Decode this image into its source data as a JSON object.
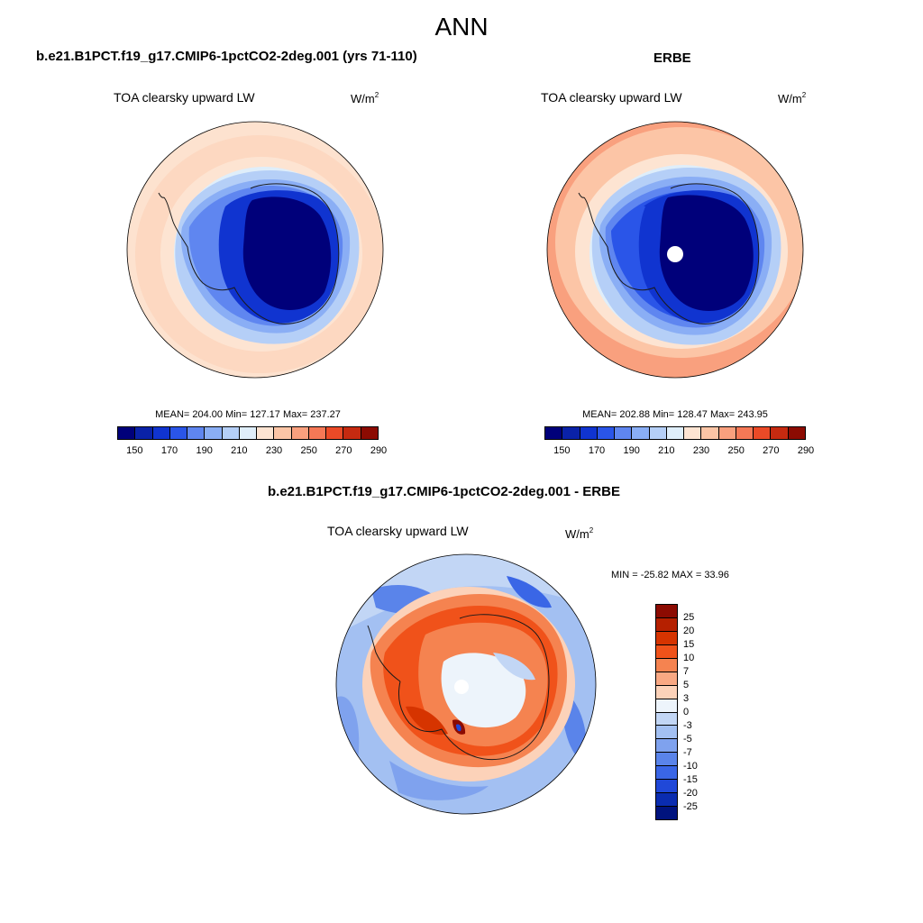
{
  "main_title": "ANN",
  "panels": [
    {
      "title": "b.e21.B1PCT.f19_g17.CMIP6-1pctCO2-2deg.001 (yrs 71-110)",
      "variable": "TOA clearsky upward LW",
      "unit_base": "W/m",
      "unit_exp": "2",
      "stats": "MEAN= 204.00  Min= 127.17  Max= 237.27"
    },
    {
      "title": "ERBE",
      "variable": "TOA clearsky upward LW",
      "unit_base": "W/m",
      "unit_exp": "2",
      "stats": "MEAN= 202.88  Min= 128.47  Max= 243.95"
    },
    {
      "title": "b.e21.B1PCT.f19_g17.CMIP6-1pctCO2-2deg.001 - ERBE",
      "variable": "TOA clearsky upward LW",
      "unit_base": "W/m",
      "unit_exp": "2",
      "stats": "MIN = -25.82 MAX =  33.96"
    }
  ],
  "colorbar_abs": {
    "colors": [
      "#00007a",
      "#0a22a8",
      "#1034d0",
      "#2a55e8",
      "#5f86f0",
      "#8aaef5",
      "#b5cff7",
      "#dfeefa",
      "#fde4d2",
      "#fcc5a6",
      "#f9a07e",
      "#f57856",
      "#eb4a27",
      "#c62a10",
      "#8c0b02"
    ],
    "tick_labels": [
      "150",
      "170",
      "190",
      "210",
      "230",
      "250",
      "270",
      "290"
    ]
  },
  "colorbar_diff": {
    "colors": [
      "#8c0b02",
      "#b52000",
      "#d63400",
      "#f0521a",
      "#f58350",
      "#f9a883",
      "#fcd2b9",
      "#edf4fb",
      "#c2d6f5",
      "#a3c0f2",
      "#7fa2ee",
      "#5a84ea",
      "#3a66e6",
      "#2048d8",
      "#0a2cb0",
      "#00137e"
    ],
    "tick_labels": [
      "25",
      "20",
      "15",
      "10",
      "7",
      "5",
      "3",
      "0",
      "-3",
      "-5",
      "-7",
      "-10",
      "-15",
      "-20",
      "-25"
    ]
  },
  "map_colors": {
    "ocean_abs": "#fdd7c0",
    "coast": "#1a1a1a",
    "missing": "#ffffff"
  }
}
